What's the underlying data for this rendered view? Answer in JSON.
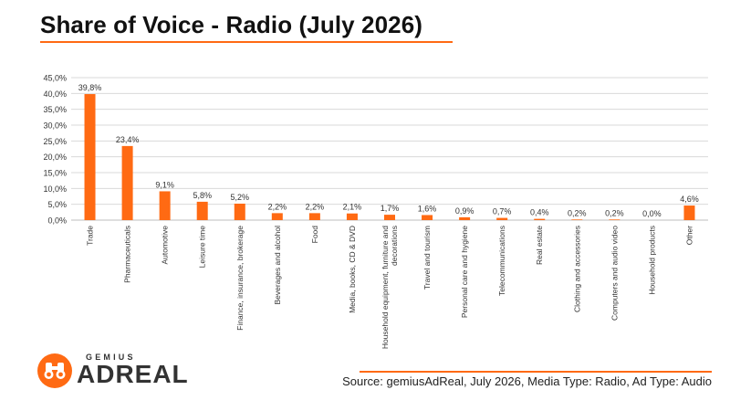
{
  "title": "Share of Voice - Radio (July 2026)",
  "source": "Source: gemiusAdReal, July 2026, Media Type: Radio, Ad Type: Audio",
  "logo": {
    "brand": "GEMIUS",
    "product": "ADREAL"
  },
  "colors": {
    "accent": "#ff6a13",
    "bar": "#ff6a13",
    "grid": "#d9d9d9",
    "text": "#222222"
  },
  "chart_data": {
    "type": "bar",
    "title": "",
    "xlabel": "",
    "ylabel": "",
    "ylim": [
      0,
      45
    ],
    "yticks": [
      0,
      5,
      10,
      15,
      20,
      25,
      30,
      35,
      40,
      45
    ],
    "ytick_labels": [
      "0,0%",
      "5,0%",
      "10,0%",
      "15,0%",
      "20,0%",
      "25,0%",
      "30,0%",
      "35,0%",
      "40,0%",
      "45,0%"
    ],
    "grid": true,
    "legend": "none",
    "categories": [
      "Trade",
      "Pharmaceuticals",
      "Automotive",
      "Leisure time",
      "Finance, insurance, brokerage",
      "Beverages and alcohol",
      "Food",
      "Media, books, CD & DVD",
      "Household equipment, furniture and decorations",
      "Travel and tourism",
      "Personal care and hygiene",
      "Telecommunications",
      "Real estate",
      "Clothing and accessories",
      "Computers and audio video",
      "Household products",
      "Other"
    ],
    "values": [
      39.8,
      23.4,
      9.1,
      5.8,
      5.2,
      2.2,
      2.2,
      2.1,
      1.7,
      1.6,
      0.9,
      0.7,
      0.4,
      0.2,
      0.2,
      0.0,
      4.6
    ],
    "value_labels": [
      "39,8%",
      "23,4%",
      "9,1%",
      "5,8%",
      "5,2%",
      "2,2%",
      "2,2%",
      "2,1%",
      "1,7%",
      "1,6%",
      "0,9%",
      "0,7%",
      "0,4%",
      "0,2%",
      "0,2%",
      "0,0%",
      "4,6%"
    ]
  }
}
